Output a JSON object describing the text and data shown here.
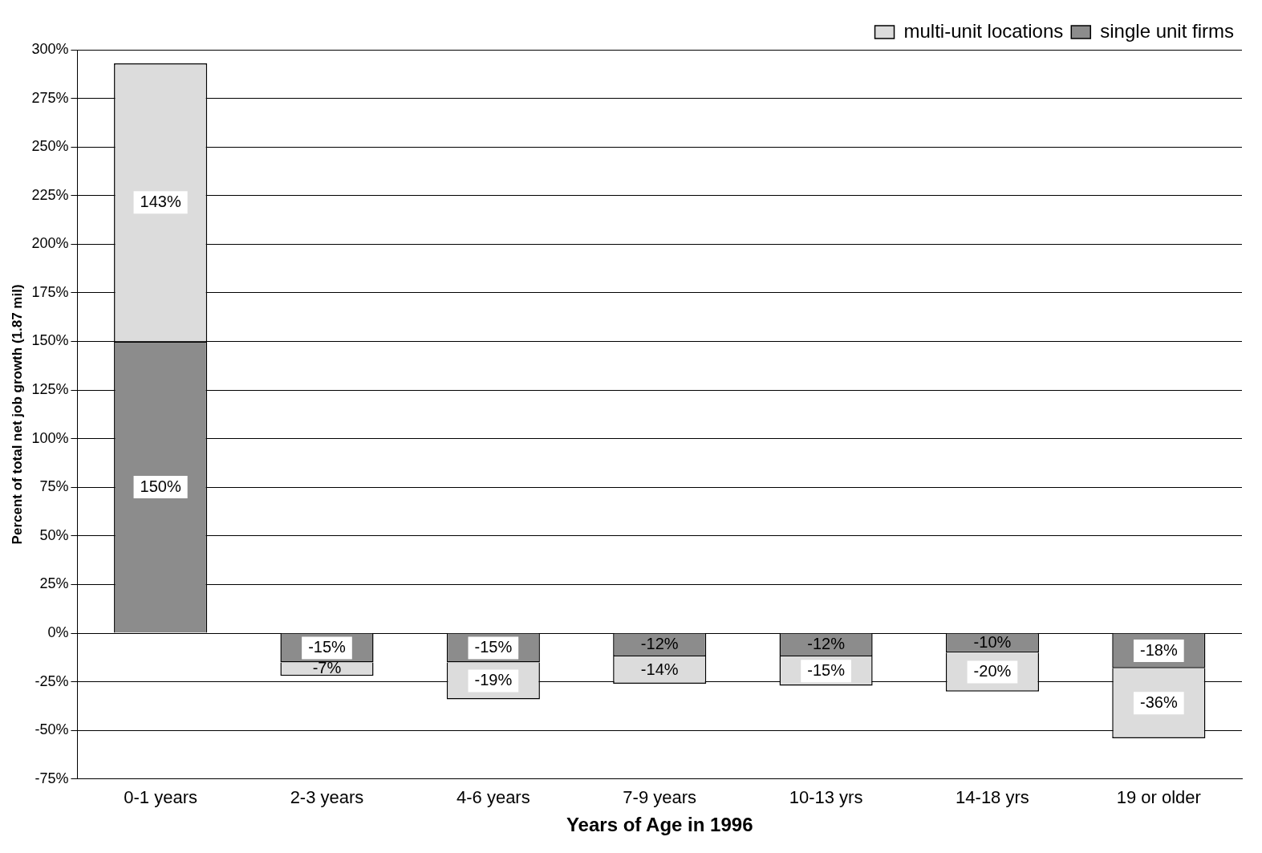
{
  "chart_data": {
    "type": "bar",
    "stacked": true,
    "xlabel": "Years of Age in 1996",
    "ylabel": "Percent of total net job growth (1.87 mil)",
    "categories": [
      "0-1 years",
      "2-3 years",
      "4-6 years",
      "7-9 years",
      "10-13 yrs",
      "14-18 yrs",
      "19 or older"
    ],
    "series": [
      {
        "name": "single unit firms",
        "color": "#8c8c8c",
        "values": [
          150,
          -15,
          -15,
          -12,
          -12,
          -10,
          -18
        ],
        "value_labels": [
          "150%",
          "-15%",
          "-15%",
          "-12%",
          "-12%",
          "-10%",
          "-18%"
        ]
      },
      {
        "name": "multi-unit locations",
        "color": "#dcdcdc",
        "values": [
          143,
          -7,
          -19,
          -14,
          -15,
          -20,
          -36
        ],
        "value_labels": [
          "143%",
          "-7%",
          "-19%",
          "-14%",
          "-15%",
          "-20%",
          "-36%"
        ]
      }
    ],
    "ylim": [
      -75,
      300
    ],
    "yticks": [
      {
        "value": -75,
        "label": "-75%"
      },
      {
        "value": -50,
        "label": "-50%"
      },
      {
        "value": -25,
        "label": "-25%"
      },
      {
        "value": 0,
        "label": "0%"
      },
      {
        "value": 25,
        "label": "25%"
      },
      {
        "value": 50,
        "label": "50%"
      },
      {
        "value": 75,
        "label": "75%"
      },
      {
        "value": 100,
        "label": "100%"
      },
      {
        "value": 125,
        "label": "125%"
      },
      {
        "value": 150,
        "label": "150%"
      },
      {
        "value": 175,
        "label": "175%"
      },
      {
        "value": 200,
        "label": "200%"
      },
      {
        "value": 225,
        "label": "225%"
      },
      {
        "value": 250,
        "label": "250%"
      },
      {
        "value": 275,
        "label": "275%"
      },
      {
        "value": 300,
        "label": "300%"
      }
    ],
    "grid": "y",
    "legend": "top right"
  }
}
